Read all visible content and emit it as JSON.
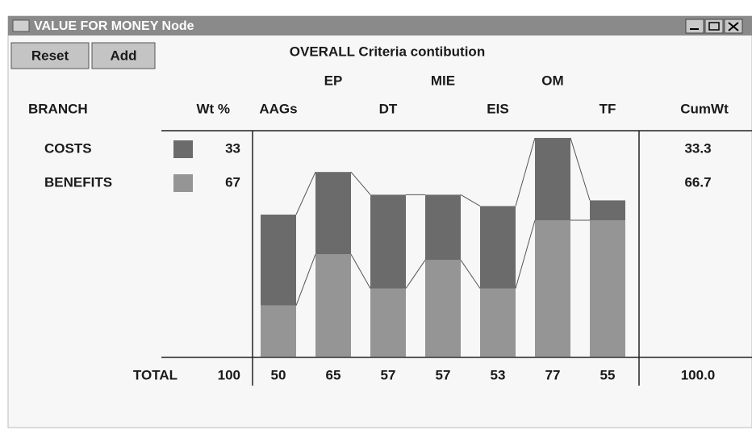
{
  "window": {
    "title": "VALUE FOR MONEY Node",
    "buttons": [
      "Reset",
      "Add"
    ]
  },
  "headers": {
    "branch": "BRANCH",
    "weight": "Wt %",
    "cum_weight": "CumWt",
    "total": "TOTAL"
  },
  "chart_data": {
    "type": "stacked-bar",
    "title": "OVERALL Criteria contibution",
    "categories": [
      "AAGs",
      "EP",
      "DT",
      "MIE",
      "EIS",
      "OM",
      "TF"
    ],
    "series": [
      {
        "name": "BENEFITS",
        "color": "#959595",
        "weight": 67,
        "cum_weight": 66.7,
        "values": [
          18,
          36,
          24,
          34,
          24,
          48,
          48
        ]
      },
      {
        "name": "COSTS",
        "color": "#6b6b6b",
        "weight": 33,
        "cum_weight": 33.3,
        "values": [
          32,
          29,
          33,
          23,
          29,
          29,
          7
        ]
      }
    ],
    "totals": [
      50,
      65,
      57,
      57,
      53,
      77,
      55
    ],
    "total_weight": 100,
    "total_cum_weight": "100.0"
  }
}
